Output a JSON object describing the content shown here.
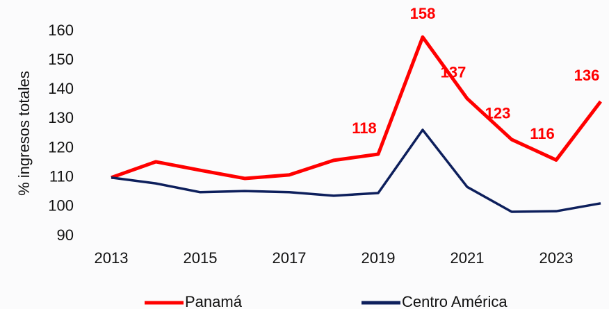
{
  "chart_data": {
    "type": "line",
    "y_label": "% ingresos totales",
    "x": [
      2013,
      2014,
      2015,
      2016,
      2017,
      2018,
      2019,
      2020,
      2021,
      2022,
      2023,
      2024
    ],
    "series": [
      {
        "name": "Panamá",
        "color": "#ff0000",
        "values": [
          110,
          115.4,
          112.5,
          109.7,
          110.9,
          115.9,
          118,
          158,
          137,
          123,
          116,
          136
        ],
        "value_labels": [
          null,
          null,
          null,
          null,
          null,
          null,
          "118",
          "158",
          "137",
          "123",
          "116",
          "136"
        ]
      },
      {
        "name": "Centro América",
        "color": "#0d1f5c",
        "values": [
          110,
          108,
          105,
          105.4,
          105,
          103.8,
          104.7,
          126.3,
          106.8,
          98.3,
          98.5,
          101.2
        ]
      }
    ],
    "xlim": [
      2013,
      2024
    ],
    "xticks": [
      2013,
      2015,
      2017,
      2019,
      2021,
      2023
    ],
    "ylim": [
      90,
      160
    ],
    "yticks": [
      90,
      100,
      110,
      120,
      130,
      140,
      150,
      160
    ],
    "legend": "bottom"
  }
}
